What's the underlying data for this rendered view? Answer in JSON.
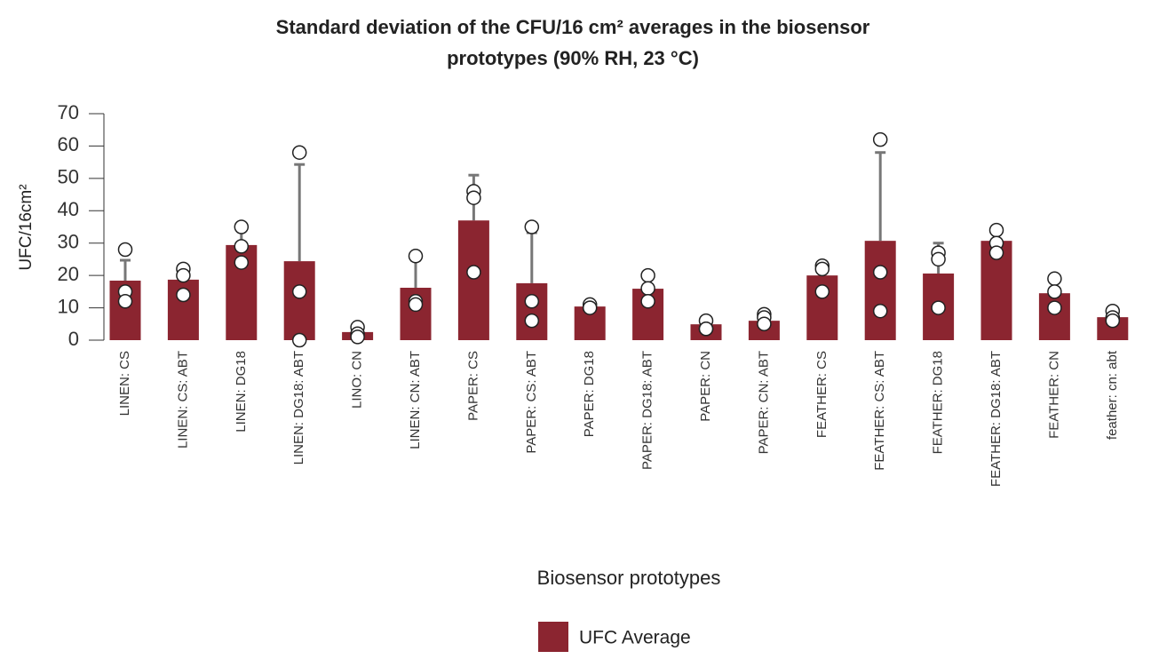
{
  "chart_data": {
    "type": "bar",
    "title": [
      "Standard deviation of the CFU/16 cm² averages in the biosensor",
      "prototypes (90% RH, 23 °C)"
    ],
    "x_label": "Biosensor prototypes",
    "y_label": "UFC/16cm²",
    "categories": [
      "LINEN: CS",
      "LINEN: CS: ABT",
      "LINEN: DG18",
      "LINEN: DG18: ABT",
      "LINO: CN",
      "LINEN: CN: ABT",
      "PAPER: CS",
      "PAPER: CS: ABT",
      "PAPER: DG18",
      "PAPER: DG18: ABT",
      "PAPER: CN",
      "PAPER: CN: ABT",
      "FEATHER: CS",
      "FEATHER: CS: ABT",
      "FEATHER: DG18",
      "FEATHER: DG18: ABT",
      "FEATHER: CN",
      "feather: cn: abt"
    ],
    "series": [
      {
        "name": "UFC Average",
        "color": "#8b2530",
        "values": [
          18.4,
          18.7,
          29.4,
          24.4,
          2.5,
          16.2,
          37,
          17.6,
          10.4,
          15.9,
          4.9,
          6,
          20,
          30.7,
          20.6,
          30.7,
          14.5,
          7.1
        ],
        "errors": [
          6.3,
          3.5,
          5.6,
          29.9,
          1.5,
          8.5,
          14,
          15.6,
          0.7,
          3.9,
          1.2,
          1.5,
          3.5,
          27.3,
          9.4,
          3.4,
          4.6,
          1.8
        ],
        "points": [
          [
            28,
            15,
            12
          ],
          [
            22,
            20,
            14
          ],
          [
            35,
            29,
            24
          ],
          [
            58,
            15,
            0
          ],
          [
            4,
            2,
            1
          ],
          [
            26,
            12,
            11
          ],
          [
            46,
            44,
            21
          ],
          [
            35,
            12,
            6
          ],
          [
            11,
            10,
            10
          ],
          [
            20,
            16,
            12
          ],
          [
            6,
            3.5,
            3.5
          ],
          [
            8,
            7,
            5
          ],
          [
            23,
            22,
            15
          ],
          [
            62,
            21,
            9
          ],
          [
            27,
            25,
            10
          ],
          [
            34,
            30,
            27
          ],
          [
            19,
            15,
            10
          ],
          [
            9,
            7,
            6
          ]
        ]
      }
    ],
    "error_color": "#777777",
    "ylim": [
      0,
      70
    ],
    "yticks": [
      0,
      10,
      20,
      30,
      40,
      50,
      60,
      70
    ]
  }
}
